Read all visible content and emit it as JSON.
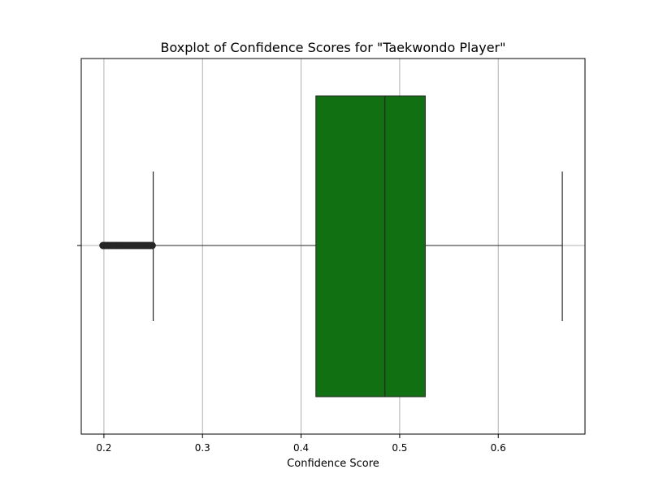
{
  "chart_data": {
    "type": "box",
    "orientation": "horizontal",
    "title": "Boxplot of Confidence Scores for \"Taekwondo Player\"",
    "xlabel": "Confidence Score",
    "ylabel": "",
    "xlim": [
      0.177,
      0.688
    ],
    "xticks": [
      0.2,
      0.3,
      0.4,
      0.5,
      0.6
    ],
    "xtick_labels": [
      "0.2",
      "0.3",
      "0.4",
      "0.5",
      "0.6"
    ],
    "grid": "x",
    "box": {
      "q1": 0.415,
      "median": 0.485,
      "q3": 0.526,
      "whisker_low": 0.25,
      "whisker_high": 0.665,
      "outliers": [
        0.199,
        0.201,
        0.203,
        0.205,
        0.207,
        0.209,
        0.211,
        0.213,
        0.215,
        0.217,
        0.219,
        0.221,
        0.223,
        0.225,
        0.227,
        0.229,
        0.231,
        0.233,
        0.235,
        0.237,
        0.239,
        0.241,
        0.243,
        0.245,
        0.247,
        0.249
      ]
    },
    "box_color": "#117011",
    "line_color": "#262626",
    "grid_color": "#b0b0b0"
  }
}
